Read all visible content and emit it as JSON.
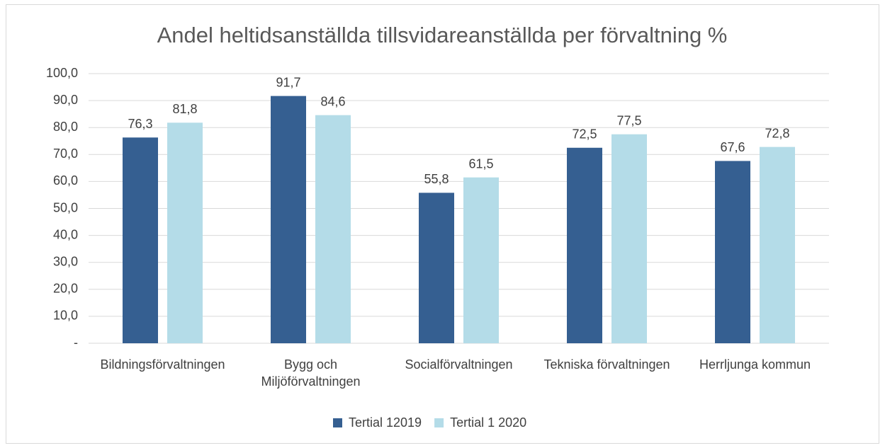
{
  "chart_data": {
    "type": "bar",
    "title": "Andel heltidsanställda tillsvidareanställda per förvaltning %",
    "categories": [
      "Bildningsförvaltningen",
      "Bygg och Miljöförvaltningen",
      "Socialförvaltningen",
      "Tekniska förvaltningen",
      "Herrljunga kommun"
    ],
    "series": [
      {
        "name": "Tertial 12019",
        "color": "#355f91",
        "values": [
          76.3,
          91.7,
          55.8,
          72.5,
          67.6
        ],
        "value_labels": [
          "76,3",
          "91,7",
          "55,8",
          "72,5",
          "67,6"
        ]
      },
      {
        "name": "Tertial 1 2020",
        "color": "#b4dce8",
        "values": [
          81.8,
          84.6,
          61.5,
          77.5,
          72.8
        ],
        "value_labels": [
          "81,8",
          "84,6",
          "61,5",
          "77,5",
          "72,8"
        ]
      }
    ],
    "ylim": [
      0,
      100
    ],
    "yticks": [
      {
        "value": 0,
        "label": "-"
      },
      {
        "value": 10,
        "label": "10,0"
      },
      {
        "value": 20,
        "label": "20,0"
      },
      {
        "value": 30,
        "label": "30,0"
      },
      {
        "value": 40,
        "label": "40,0"
      },
      {
        "value": 50,
        "label": "50,0"
      },
      {
        "value": 60,
        "label": "60,0"
      },
      {
        "value": 70,
        "label": "70,0"
      },
      {
        "value": 80,
        "label": "80,0"
      },
      {
        "value": 90,
        "label": "90,0"
      },
      {
        "value": 100,
        "label": "100,0"
      }
    ],
    "grid": true,
    "legend": "bottom"
  }
}
